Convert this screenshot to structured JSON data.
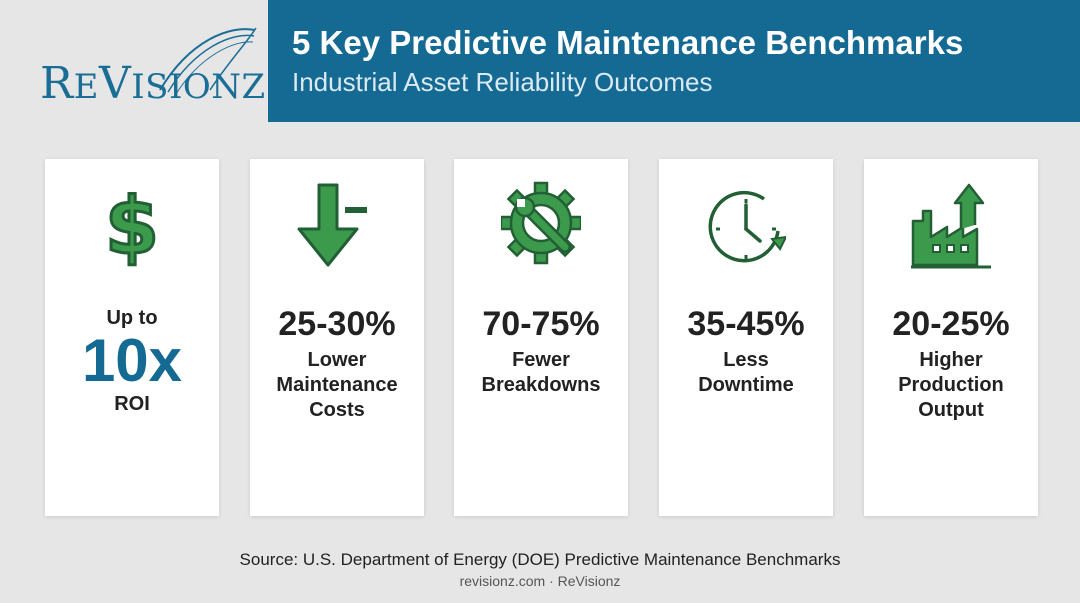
{
  "logo": {
    "big_r": "R",
    "small_e": "E",
    "big_v": "V",
    "small_rest": "ISIONZ"
  },
  "header": {
    "title": "5 Key Predictive Maintenance Benchmarks",
    "subtitle": "Industrial Asset Reliability Outcomes"
  },
  "cards": [
    {
      "icon": "dollar-icon",
      "prefix": "Up to",
      "value": "10x",
      "label": "ROI"
    },
    {
      "icon": "down-arrow-minus-icon",
      "value": "25-30%",
      "label_lines": [
        "Lower",
        "Maintenance",
        "Costs"
      ]
    },
    {
      "icon": "gear-wrench-icon",
      "value": "70-75%",
      "label_lines": [
        "Fewer",
        "Breakdowns"
      ]
    },
    {
      "icon": "clock-icon",
      "value": "35-45%",
      "label_lines": [
        "Less",
        "Downtime"
      ]
    },
    {
      "icon": "factory-growth-icon",
      "value": "20-25%",
      "label_lines": [
        "Higher",
        "Production",
        "Output"
      ]
    }
  ],
  "footer": {
    "source": "Source: U.S. Department of Energy (DOE) Predictive Maintenance Benchmarks",
    "credit": "revisionz.com · ReVisionz"
  },
  "colors": {
    "brand_blue": "#146a93",
    "icon_green": "#3c9a4d",
    "icon_dark": "#225f34"
  }
}
